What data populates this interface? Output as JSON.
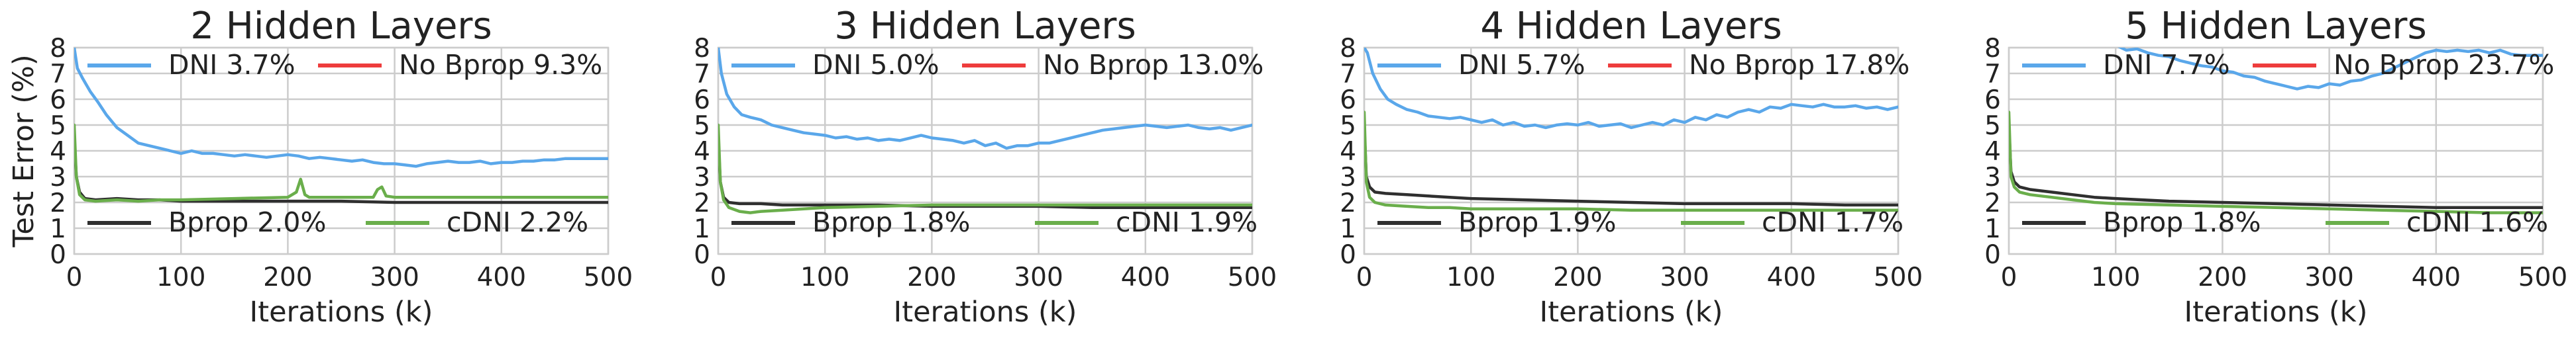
{
  "chart_data": [
    {
      "type": "line",
      "title": "2 Hidden Layers",
      "xlabel": "Iterations (k)",
      "ylabel": "Test Error (%)",
      "xlim": [
        0,
        500
      ],
      "ylim": [
        0,
        8
      ],
      "xticks": [
        "0",
        "100",
        "200",
        "300",
        "400",
        "500"
      ],
      "yticks": [
        "0",
        "1",
        "2",
        "3",
        "4",
        "5",
        "6",
        "7",
        "8"
      ],
      "grid": true,
      "legend": [
        {
          "label": "DNI 3.7%",
          "color": "#5aa7ea",
          "position": "top-left"
        },
        {
          "label": "No Bprop 9.3%",
          "color": "#ee3c3c",
          "position": "top-right"
        },
        {
          "label": "Bprop 2.0%",
          "color": "#2f2f2f",
          "position": "bottom-left"
        },
        {
          "label": "cDNI 2.2%",
          "color": "#6aae4b",
          "position": "bottom-right"
        }
      ],
      "series": [
        {
          "name": "No Bprop",
          "color": "#ee3c3c",
          "x": [
            0,
            0.6,
            1.2
          ],
          "y": [
            9.3,
            9.3,
            9.3
          ]
        },
        {
          "name": "DNI",
          "color": "#5aa7ea",
          "x": [
            0,
            3,
            8,
            15,
            22,
            30,
            40,
            50,
            60,
            70,
            80,
            90,
            100,
            110,
            120,
            130,
            140,
            150,
            160,
            170,
            180,
            190,
            200,
            210,
            220,
            230,
            240,
            250,
            260,
            270,
            280,
            290,
            300,
            310,
            320,
            330,
            340,
            350,
            360,
            370,
            380,
            390,
            400,
            410,
            420,
            430,
            440,
            450,
            460,
            470,
            480,
            490,
            500
          ],
          "y": [
            8.0,
            7.2,
            6.8,
            6.3,
            5.9,
            5.4,
            4.9,
            4.6,
            4.3,
            4.2,
            4.1,
            4.0,
            3.9,
            4.0,
            3.9,
            3.9,
            3.85,
            3.8,
            3.85,
            3.8,
            3.75,
            3.8,
            3.85,
            3.8,
            3.7,
            3.75,
            3.7,
            3.65,
            3.6,
            3.65,
            3.55,
            3.5,
            3.5,
            3.45,
            3.4,
            3.5,
            3.55,
            3.6,
            3.55,
            3.55,
            3.6,
            3.5,
            3.55,
            3.55,
            3.6,
            3.6,
            3.65,
            3.65,
            3.7,
            3.7,
            3.7,
            3.7,
            3.7
          ]
        },
        {
          "name": "Bprop",
          "color": "#2f2f2f",
          "x": [
            0,
            2,
            5,
            10,
            20,
            40,
            60,
            80,
            100,
            150,
            200,
            250,
            300,
            350,
            400,
            450,
            500
          ],
          "y": [
            4.5,
            3.0,
            2.4,
            2.15,
            2.1,
            2.15,
            2.1,
            2.1,
            2.05,
            2.05,
            2.05,
            2.05,
            2.0,
            2.0,
            2.0,
            2.0,
            2.0
          ]
        },
        {
          "name": "cDNI",
          "color": "#6aae4b",
          "x": [
            0,
            2,
            5,
            10,
            20,
            40,
            60,
            80,
            100,
            150,
            200,
            208,
            212,
            216,
            220,
            250,
            280,
            284,
            288,
            292,
            300,
            350,
            400,
            450,
            500
          ],
          "y": [
            5.0,
            3.0,
            2.3,
            2.1,
            2.05,
            2.1,
            2.05,
            2.1,
            2.1,
            2.15,
            2.2,
            2.4,
            2.9,
            2.3,
            2.2,
            2.2,
            2.2,
            2.5,
            2.6,
            2.25,
            2.2,
            2.2,
            2.2,
            2.2,
            2.2
          ]
        }
      ]
    },
    {
      "type": "line",
      "title": "3 Hidden Layers",
      "xlabel": "Iterations (k)",
      "ylabel": "",
      "xlim": [
        0,
        500
      ],
      "ylim": [
        0,
        8
      ],
      "xticks": [
        "0",
        "100",
        "200",
        "300",
        "400",
        "500"
      ],
      "yticks": [
        "0",
        "1",
        "2",
        "3",
        "4",
        "5",
        "6",
        "7",
        "8"
      ],
      "grid": true,
      "legend": [
        {
          "label": "DNI 5.0%",
          "color": "#5aa7ea",
          "position": "top-left"
        },
        {
          "label": "No Bprop 13.0%",
          "color": "#ee3c3c",
          "position": "top-right"
        },
        {
          "label": "Bprop 1.8%",
          "color": "#2f2f2f",
          "position": "bottom-left"
        },
        {
          "label": "cDNI 1.9%",
          "color": "#6aae4b",
          "position": "bottom-right"
        }
      ],
      "series": [
        {
          "name": "No Bprop",
          "color": "#ee3c3c",
          "x": [
            0,
            0.6,
            1.2
          ],
          "y": [
            13.0,
            13.0,
            13.0
          ]
        },
        {
          "name": "DNI",
          "color": "#5aa7ea",
          "x": [
            0,
            3,
            8,
            15,
            22,
            30,
            40,
            50,
            60,
            70,
            80,
            90,
            100,
            110,
            120,
            130,
            140,
            150,
            160,
            170,
            180,
            190,
            200,
            210,
            220,
            230,
            240,
            250,
            260,
            270,
            280,
            290,
            300,
            310,
            320,
            330,
            340,
            350,
            360,
            370,
            380,
            390,
            400,
            410,
            420,
            430,
            440,
            450,
            460,
            470,
            480,
            490,
            500
          ],
          "y": [
            8.0,
            7.0,
            6.2,
            5.7,
            5.4,
            5.3,
            5.2,
            5.0,
            4.9,
            4.8,
            4.7,
            4.65,
            4.6,
            4.5,
            4.55,
            4.45,
            4.5,
            4.4,
            4.45,
            4.4,
            4.5,
            4.6,
            4.5,
            4.45,
            4.4,
            4.3,
            4.4,
            4.2,
            4.3,
            4.1,
            4.2,
            4.2,
            4.3,
            4.3,
            4.4,
            4.5,
            4.6,
            4.7,
            4.8,
            4.85,
            4.9,
            4.95,
            5.0,
            4.95,
            4.9,
            4.95,
            5.0,
            4.9,
            4.85,
            4.9,
            4.8,
            4.9,
            5.0
          ]
        },
        {
          "name": "Bprop",
          "color": "#2f2f2f",
          "x": [
            0,
            2,
            5,
            10,
            20,
            40,
            60,
            80,
            100,
            150,
            200,
            250,
            300,
            350,
            400,
            450,
            500
          ],
          "y": [
            4.5,
            2.8,
            2.2,
            2.0,
            1.95,
            1.95,
            1.9,
            1.9,
            1.9,
            1.9,
            1.85,
            1.85,
            1.85,
            1.8,
            1.8,
            1.8,
            1.8
          ]
        },
        {
          "name": "cDNI",
          "color": "#6aae4b",
          "x": [
            0,
            2,
            5,
            10,
            20,
            30,
            40,
            60,
            80,
            100,
            150,
            200,
            250,
            300,
            350,
            400,
            450,
            500
          ],
          "y": [
            5.0,
            2.8,
            2.1,
            1.8,
            1.65,
            1.6,
            1.65,
            1.7,
            1.75,
            1.8,
            1.85,
            1.9,
            1.9,
            1.9,
            1.9,
            1.9,
            1.9,
            1.9
          ]
        }
      ]
    },
    {
      "type": "line",
      "title": "4 Hidden Layers",
      "xlabel": "Iterations (k)",
      "ylabel": "",
      "xlim": [
        0,
        500
      ],
      "ylim": [
        0,
        8
      ],
      "xticks": [
        "0",
        "100",
        "200",
        "300",
        "400",
        "500"
      ],
      "yticks": [
        "0",
        "1",
        "2",
        "3",
        "4",
        "5",
        "6",
        "7",
        "8"
      ],
      "grid": true,
      "legend": [
        {
          "label": "DNI 5.7%",
          "color": "#5aa7ea",
          "position": "top-left"
        },
        {
          "label": "No Bprop 17.8%",
          "color": "#ee3c3c",
          "position": "top-right"
        },
        {
          "label": "Bprop 1.9%",
          "color": "#2f2f2f",
          "position": "bottom-left"
        },
        {
          "label": "cDNI 1.7%",
          "color": "#6aae4b",
          "position": "bottom-right"
        }
      ],
      "series": [
        {
          "name": "No Bprop",
          "color": "#ee3c3c",
          "x": [
            0,
            0.6,
            1.2
          ],
          "y": [
            17.8,
            17.8,
            17.8
          ]
        },
        {
          "name": "DNI",
          "color": "#5aa7ea",
          "x": [
            0,
            3,
            8,
            15,
            22,
            30,
            40,
            50,
            60,
            70,
            80,
            90,
            100,
            110,
            120,
            130,
            140,
            150,
            160,
            170,
            180,
            190,
            200,
            210,
            220,
            230,
            240,
            250,
            260,
            270,
            280,
            290,
            300,
            310,
            320,
            330,
            340,
            350,
            360,
            370,
            380,
            390,
            400,
            410,
            420,
            430,
            440,
            450,
            460,
            470,
            480,
            490,
            500
          ],
          "y": [
            8.0,
            7.8,
            7.0,
            6.4,
            6.0,
            5.8,
            5.6,
            5.5,
            5.35,
            5.3,
            5.25,
            5.3,
            5.2,
            5.1,
            5.2,
            5.0,
            5.1,
            4.95,
            5.0,
            4.9,
            5.0,
            5.05,
            5.0,
            5.1,
            4.95,
            5.0,
            5.05,
            4.9,
            5.0,
            5.1,
            5.0,
            5.2,
            5.1,
            5.3,
            5.2,
            5.4,
            5.3,
            5.5,
            5.6,
            5.5,
            5.7,
            5.65,
            5.8,
            5.75,
            5.7,
            5.8,
            5.7,
            5.7,
            5.75,
            5.65,
            5.7,
            5.6,
            5.7
          ]
        },
        {
          "name": "Bprop",
          "color": "#2f2f2f",
          "x": [
            0,
            2,
            5,
            10,
            20,
            40,
            60,
            80,
            100,
            150,
            200,
            250,
            300,
            350,
            400,
            450,
            500
          ],
          "y": [
            5.0,
            3.0,
            2.6,
            2.4,
            2.35,
            2.3,
            2.25,
            2.2,
            2.15,
            2.1,
            2.05,
            2.0,
            1.95,
            1.95,
            1.95,
            1.9,
            1.9
          ]
        },
        {
          "name": "cDNI",
          "color": "#6aae4b",
          "x": [
            0,
            2,
            5,
            10,
            20,
            40,
            60,
            80,
            100,
            150,
            200,
            250,
            300,
            350,
            400,
            450,
            500
          ],
          "y": [
            5.5,
            2.8,
            2.2,
            2.0,
            1.9,
            1.85,
            1.8,
            1.8,
            1.75,
            1.75,
            1.75,
            1.7,
            1.7,
            1.7,
            1.7,
            1.7,
            1.7
          ]
        }
      ]
    },
    {
      "type": "line",
      "title": "5 Hidden Layers",
      "xlabel": "Iterations (k)",
      "ylabel": "",
      "xlim": [
        0,
        500
      ],
      "ylim": [
        0,
        8
      ],
      "xticks": [
        "0",
        "100",
        "200",
        "300",
        "400",
        "500"
      ],
      "yticks": [
        "0",
        "1",
        "2",
        "3",
        "4",
        "5",
        "6",
        "7",
        "8"
      ],
      "grid": true,
      "legend": [
        {
          "label": "DNI 7.7%",
          "color": "#5aa7ea",
          "position": "top-left"
        },
        {
          "label": "No Bprop 23.7%",
          "color": "#ee3c3c",
          "position": "top-right"
        },
        {
          "label": "Bprop 1.8%",
          "color": "#2f2f2f",
          "position": "bottom-left"
        },
        {
          "label": "cDNI 1.6%",
          "color": "#6aae4b",
          "position": "bottom-right"
        }
      ],
      "series": [
        {
          "name": "No Bprop",
          "color": "#ee3c3c",
          "x": [
            0,
            0.6,
            1.2
          ],
          "y": [
            23.7,
            23.7,
            23.7
          ]
        },
        {
          "name": "DNI",
          "color": "#5aa7ea",
          "x": [
            100,
            110,
            120,
            130,
            140,
            150,
            160,
            170,
            180,
            190,
            200,
            210,
            220,
            230,
            240,
            250,
            260,
            270,
            280,
            290,
            300,
            310,
            320,
            330,
            340,
            350,
            360,
            370,
            380,
            390,
            400,
            410,
            420,
            430,
            440,
            450,
            460,
            470,
            480,
            490,
            500
          ],
          "y": [
            8.1,
            7.9,
            7.95,
            7.8,
            7.7,
            7.65,
            7.5,
            7.4,
            7.3,
            7.25,
            7.1,
            7.05,
            6.9,
            6.85,
            6.7,
            6.6,
            6.5,
            6.4,
            6.5,
            6.45,
            6.6,
            6.55,
            6.7,
            6.75,
            6.9,
            7.0,
            7.2,
            7.4,
            7.6,
            7.8,
            7.9,
            7.85,
            7.9,
            7.85,
            7.9,
            7.8,
            7.9,
            7.75,
            7.7,
            7.7,
            7.7
          ]
        },
        {
          "name": "Bprop",
          "color": "#2f2f2f",
          "x": [
            0,
            2,
            5,
            10,
            20,
            40,
            60,
            80,
            100,
            150,
            200,
            250,
            300,
            350,
            400,
            450,
            500
          ],
          "y": [
            5.0,
            3.2,
            2.8,
            2.6,
            2.5,
            2.4,
            2.3,
            2.2,
            2.15,
            2.05,
            2.0,
            1.95,
            1.9,
            1.85,
            1.8,
            1.8,
            1.8
          ]
        },
        {
          "name": "cDNI",
          "color": "#6aae4b",
          "x": [
            0,
            2,
            5,
            10,
            20,
            40,
            60,
            80,
            100,
            150,
            200,
            250,
            300,
            350,
            400,
            450,
            500
          ],
          "y": [
            5.5,
            3.0,
            2.6,
            2.4,
            2.3,
            2.2,
            2.1,
            2.0,
            1.95,
            1.9,
            1.85,
            1.8,
            1.75,
            1.7,
            1.65,
            1.6,
            1.6
          ]
        }
      ]
    }
  ]
}
